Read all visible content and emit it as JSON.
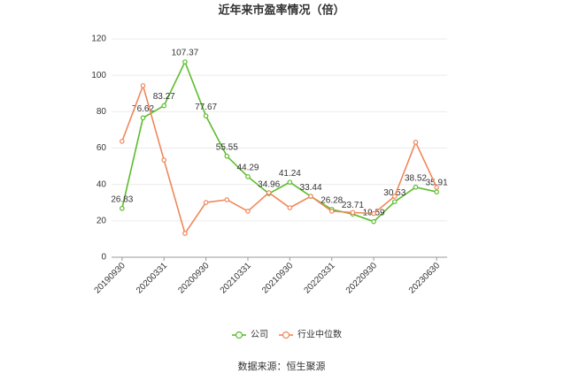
{
  "chart_data": {
    "type": "line",
    "title": "近年来市盈率情况（倍）",
    "source": "数据来源：恒生聚源",
    "categories": [
      "20190930",
      null,
      "20200331",
      null,
      "20200930",
      null,
      "20210331",
      null,
      "20210930",
      null,
      "20220331",
      null,
      "20220930",
      null,
      null,
      "20230630"
    ],
    "series": [
      {
        "name": "公司",
        "color": "#5bbd2b",
        "data_labels": true,
        "values": [
          26.83,
          76.62,
          83.27,
          107.37,
          77.67,
          55.55,
          44.29,
          34.96,
          41.24,
          33.44,
          26.28,
          23.71,
          19.59,
          30.53,
          38.52,
          35.91
        ]
      },
      {
        "name": "行业中位数",
        "color": "#f0875a",
        "data_labels": false,
        "values": [
          63.7,
          94.3,
          53.4,
          13.1,
          30.1,
          31.6,
          25.3,
          35.5,
          27.2,
          33.5,
          25.3,
          24.6,
          24.0,
          33.5,
          63.2,
          38.4
        ]
      }
    ],
    "ylim": [
      0,
      120
    ],
    "yticks": [
      0,
      20,
      40,
      60,
      80,
      100,
      120
    ],
    "grid": true,
    "legend": "bottom"
  }
}
